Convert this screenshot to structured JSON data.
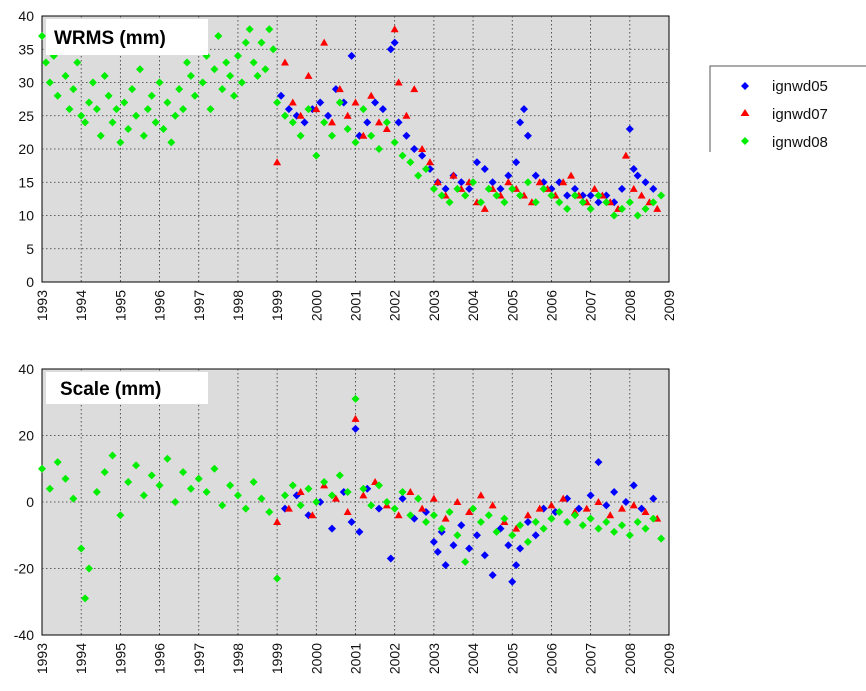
{
  "chart_data": [
    {
      "type": "scatter",
      "title": "WRMS (mm)",
      "xlabel": "",
      "ylabel": "",
      "xlim": [
        1993,
        2009
      ],
      "ylim": [
        0,
        40
      ],
      "xticks": [
        "1993",
        "1994",
        "1995",
        "1996",
        "1997",
        "1998",
        "1999",
        "2000",
        "2001",
        "2002",
        "2003",
        "2004",
        "2005",
        "2006",
        "2007",
        "2008",
        "2009"
      ],
      "yticks": [
        "0",
        "5",
        "10",
        "15",
        "20",
        "25",
        "30",
        "35",
        "40"
      ],
      "grid": true,
      "series": [
        {
          "name": "ignwd05",
          "color": "#0000ff",
          "marker": "diamond",
          "x": [
            1999.1,
            1999.3,
            1999.5,
            1999.7,
            1999.9,
            2000.1,
            2000.3,
            2000.5,
            2000.7,
            2000.9,
            2001.1,
            2001.3,
            2001.5,
            2001.7,
            2001.9,
            2002.0,
            2002.1,
            2002.3,
            2002.5,
            2002.7,
            2002.9,
            2003.1,
            2003.3,
            2003.5,
            2003.7,
            2003.9,
            2004.1,
            2004.3,
            2004.5,
            2004.7,
            2004.9,
            2005.1,
            2005.2,
            2005.3,
            2005.4,
            2005.6,
            2005.8,
            2006.0,
            2006.2,
            2006.4,
            2006.6,
            2006.8,
            2007.0,
            2007.2,
            2007.4,
            2007.6,
            2007.8,
            2008.0,
            2008.1,
            2008.2,
            2008.4,
            2008.6
          ],
          "y": [
            28,
            26,
            25,
            24,
            26,
            27,
            25,
            29,
            27,
            34,
            22,
            24,
            27,
            26,
            35,
            36,
            24,
            22,
            20,
            19,
            17,
            15,
            14,
            16,
            15,
            14,
            18,
            17,
            15,
            14,
            16,
            18,
            24,
            26,
            22,
            16,
            15,
            14,
            15,
            13,
            14,
            13,
            13,
            12,
            13,
            12,
            14,
            23,
            17,
            16,
            15,
            14
          ]
        },
        {
          "name": "ignwd07",
          "color": "#ff0000",
          "marker": "triangle",
          "x": [
            1999.0,
            1999.2,
            1999.4,
            1999.6,
            1999.8,
            2000.0,
            2000.2,
            2000.4,
            2000.6,
            2000.8,
            2001.0,
            2001.2,
            2001.4,
            2001.6,
            2001.8,
            2002.0,
            2002.1,
            2002.3,
            2002.5,
            2002.7,
            2002.9,
            2003.1,
            2003.3,
            2003.5,
            2003.7,
            2003.9,
            2004.1,
            2004.3,
            2004.5,
            2004.7,
            2004.9,
            2005.1,
            2005.3,
            2005.5,
            2005.7,
            2005.9,
            2006.1,
            2006.3,
            2006.5,
            2006.7,
            2006.9,
            2007.1,
            2007.3,
            2007.5,
            2007.7,
            2007.9,
            2008.1,
            2008.3,
            2008.5,
            2008.7
          ],
          "y": [
            18,
            33,
            27,
            25,
            31,
            26,
            36,
            24,
            29,
            25,
            27,
            22,
            28,
            24,
            23,
            38,
            30,
            25,
            29,
            20,
            18,
            15,
            13,
            16,
            14,
            15,
            12,
            11,
            14,
            13,
            15,
            14,
            13,
            12,
            15,
            14,
            13,
            15,
            16,
            13,
            12,
            14,
            13,
            12,
            11,
            19,
            14,
            13,
            12,
            11
          ]
        },
        {
          "name": "ignwd08",
          "color": "#00ee00",
          "marker": "diamond",
          "x": [
            1993.0,
            1993.1,
            1993.2,
            1993.3,
            1993.4,
            1993.5,
            1993.6,
            1993.7,
            1993.8,
            1993.9,
            1994.0,
            1994.1,
            1994.2,
            1994.3,
            1994.4,
            1994.5,
            1994.6,
            1994.7,
            1994.8,
            1994.9,
            1995.0,
            1995.1,
            1995.2,
            1995.3,
            1995.4,
            1995.5,
            1995.6,
            1995.7,
            1995.8,
            1995.9,
            1996.0,
            1996.1,
            1996.2,
            1996.3,
            1996.4,
            1996.5,
            1996.6,
            1996.7,
            1996.8,
            1996.9,
            1997.0,
            1997.1,
            1997.2,
            1997.3,
            1997.4,
            1997.5,
            1997.6,
            1997.7,
            1997.8,
            1997.9,
            1998.0,
            1998.1,
            1998.2,
            1998.3,
            1998.4,
            1998.5,
            1998.6,
            1998.7,
            1998.8,
            1998.9,
            1999.0,
            1999.2,
            1999.4,
            1999.6,
            1999.8,
            2000.0,
            2000.2,
            2000.4,
            2000.6,
            2000.8,
            2001.0,
            2001.2,
            2001.4,
            2001.6,
            2001.8,
            2002.0,
            2002.2,
            2002.4,
            2002.6,
            2002.8,
            2003.0,
            2003.2,
            2003.4,
            2003.6,
            2003.8,
            2004.0,
            2004.2,
            2004.4,
            2004.6,
            2004.8,
            2005.0,
            2005.2,
            2005.4,
            2005.6,
            2005.8,
            2006.0,
            2006.2,
            2006.4,
            2006.6,
            2006.8,
            2007.0,
            2007.2,
            2007.4,
            2007.6,
            2007.8,
            2008.0,
            2008.2,
            2008.4,
            2008.6,
            2008.8
          ],
          "y": [
            37,
            33,
            30,
            34,
            28,
            35,
            31,
            26,
            29,
            33,
            25,
            24,
            27,
            30,
            26,
            22,
            31,
            28,
            24,
            26,
            21,
            27,
            23,
            29,
            25,
            32,
            22,
            26,
            28,
            24,
            30,
            23,
            27,
            21,
            25,
            29,
            26,
            33,
            31,
            28,
            35,
            30,
            34,
            26,
            32,
            37,
            29,
            33,
            31,
            28,
            34,
            30,
            36,
            38,
            33,
            31,
            36,
            32,
            38,
            35,
            27,
            25,
            24,
            22,
            26,
            19,
            24,
            22,
            27,
            23,
            21,
            26,
            22,
            20,
            24,
            21,
            19,
            18,
            16,
            17,
            14,
            13,
            12,
            14,
            13,
            15,
            12,
            14,
            13,
            12,
            14,
            13,
            15,
            12,
            14,
            13,
            12,
            11,
            13,
            12,
            11,
            13,
            12,
            10,
            11,
            12,
            10,
            11,
            12,
            13
          ]
        }
      ]
    },
    {
      "type": "scatter",
      "title": "Scale (mm)",
      "xlabel": "",
      "ylabel": "",
      "xlim": [
        1993,
        2009
      ],
      "ylim": [
        -40,
        40
      ],
      "xticks": [
        "1993",
        "1994",
        "1995",
        "1996",
        "1997",
        "1998",
        "1999",
        "2000",
        "2001",
        "2002",
        "2003",
        "2004",
        "2005",
        "2006",
        "2007",
        "2008",
        "2009"
      ],
      "yticks": [
        "-40",
        "-20",
        "0",
        "20",
        "40"
      ],
      "grid": true,
      "series": [
        {
          "name": "ignwd05",
          "color": "#0000ff",
          "marker": "diamond",
          "x": [
            1999.2,
            1999.5,
            1999.8,
            2000.1,
            2000.4,
            2000.7,
            2000.9,
            2001.0,
            2001.1,
            2001.3,
            2001.6,
            2001.9,
            2002.2,
            2002.5,
            2002.8,
            2003.0,
            2003.1,
            2003.2,
            2003.3,
            2003.5,
            2003.7,
            2003.9,
            2004.1,
            2004.3,
            2004.5,
            2004.7,
            2004.9,
            2005.0,
            2005.1,
            2005.2,
            2005.4,
            2005.6,
            2005.8,
            2006.1,
            2006.4,
            2006.7,
            2007.0,
            2007.2,
            2007.4,
            2007.6,
            2007.9,
            2008.1,
            2008.3,
            2008.6
          ],
          "y": [
            -2,
            2,
            -4,
            0,
            -8,
            3,
            -6,
            22,
            -9,
            4,
            -2,
            -17,
            1,
            -5,
            -3,
            -12,
            -15,
            -9,
            -19,
            -13,
            -7,
            -14,
            -10,
            -16,
            -22,
            -8,
            -13,
            -24,
            -19,
            -14,
            -6,
            -10,
            -2,
            -3,
            1,
            -2,
            2,
            12,
            -1,
            3,
            0,
            5,
            -2,
            1
          ]
        },
        {
          "name": "ignwd07",
          "color": "#ff0000",
          "marker": "triangle",
          "x": [
            1999.0,
            1999.3,
            1999.6,
            1999.9,
            2000.2,
            2000.5,
            2000.8,
            2001.0,
            2001.2,
            2001.5,
            2001.8,
            2002.1,
            2002.4,
            2002.7,
            2003.0,
            2003.3,
            2003.6,
            2003.9,
            2004.2,
            2004.5,
            2004.8,
            2005.1,
            2005.4,
            2005.7,
            2006.0,
            2006.3,
            2006.6,
            2006.9,
            2007.2,
            2007.5,
            2007.8,
            2008.1,
            2008.4,
            2008.7
          ],
          "y": [
            -6,
            -2,
            3,
            -4,
            5,
            1,
            -3,
            25,
            2,
            6,
            -1,
            -4,
            3,
            -2,
            1,
            -5,
            0,
            -3,
            2,
            -1,
            -6,
            -8,
            -4,
            -2,
            -1,
            1,
            -3,
            -2,
            0,
            -4,
            -2,
            -1,
            -3,
            -5
          ]
        },
        {
          "name": "ignwd08",
          "color": "#00ee00",
          "marker": "diamond",
          "x": [
            1993.0,
            1993.2,
            1993.4,
            1993.6,
            1993.8,
            1994.0,
            1994.1,
            1994.2,
            1994.4,
            1994.6,
            1994.8,
            1995.0,
            1995.2,
            1995.4,
            1995.6,
            1995.8,
            1996.0,
            1996.2,
            1996.4,
            1996.6,
            1996.8,
            1997.0,
            1997.2,
            1997.4,
            1997.6,
            1997.8,
            1998.0,
            1998.2,
            1998.4,
            1998.6,
            1998.8,
            1999.0,
            1999.2,
            1999.4,
            1999.6,
            1999.8,
            2000.0,
            2000.2,
            2000.4,
            2000.6,
            2000.8,
            2001.0,
            2001.2,
            2001.4,
            2001.6,
            2001.8,
            2002.0,
            2002.2,
            2002.4,
            2002.6,
            2002.8,
            2003.0,
            2003.2,
            2003.4,
            2003.6,
            2003.8,
            2004.0,
            2004.2,
            2004.4,
            2004.6,
            2004.8,
            2005.0,
            2005.2,
            2005.4,
            2005.6,
            2005.8,
            2006.0,
            2006.2,
            2006.4,
            2006.6,
            2006.8,
            2007.0,
            2007.2,
            2007.4,
            2007.6,
            2007.8,
            2008.0,
            2008.2,
            2008.4,
            2008.6,
            2008.8
          ],
          "y": [
            10,
            4,
            12,
            7,
            1,
            -14,
            -29,
            -20,
            3,
            9,
            14,
            -4,
            6,
            11,
            2,
            8,
            5,
            13,
            0,
            9,
            4,
            7,
            3,
            10,
            -1,
            5,
            2,
            -2,
            6,
            1,
            -3,
            -23,
            2,
            5,
            -1,
            4,
            0,
            6,
            2,
            8,
            3,
            31,
            4,
            -1,
            5,
            0,
            -2,
            3,
            -4,
            1,
            -6,
            -4,
            -8,
            -3,
            -10,
            -18,
            -2,
            -6,
            -4,
            -9,
            -5,
            -10,
            -7,
            -12,
            -6,
            -8,
            -5,
            -3,
            -6,
            -4,
            -7,
            -5,
            -8,
            -6,
            -9,
            -7,
            -10,
            -6,
            -8,
            -5,
            -11
          ]
        }
      ]
    }
  ],
  "legend": {
    "entries": [
      {
        "label": "ignwd05",
        "color": "#0000ff",
        "marker": "diamond"
      },
      {
        "label": "ignwd07",
        "color": "#ff0000",
        "marker": "triangle"
      },
      {
        "label": "ignwd08",
        "color": "#00ee00",
        "marker": "diamond"
      }
    ]
  }
}
